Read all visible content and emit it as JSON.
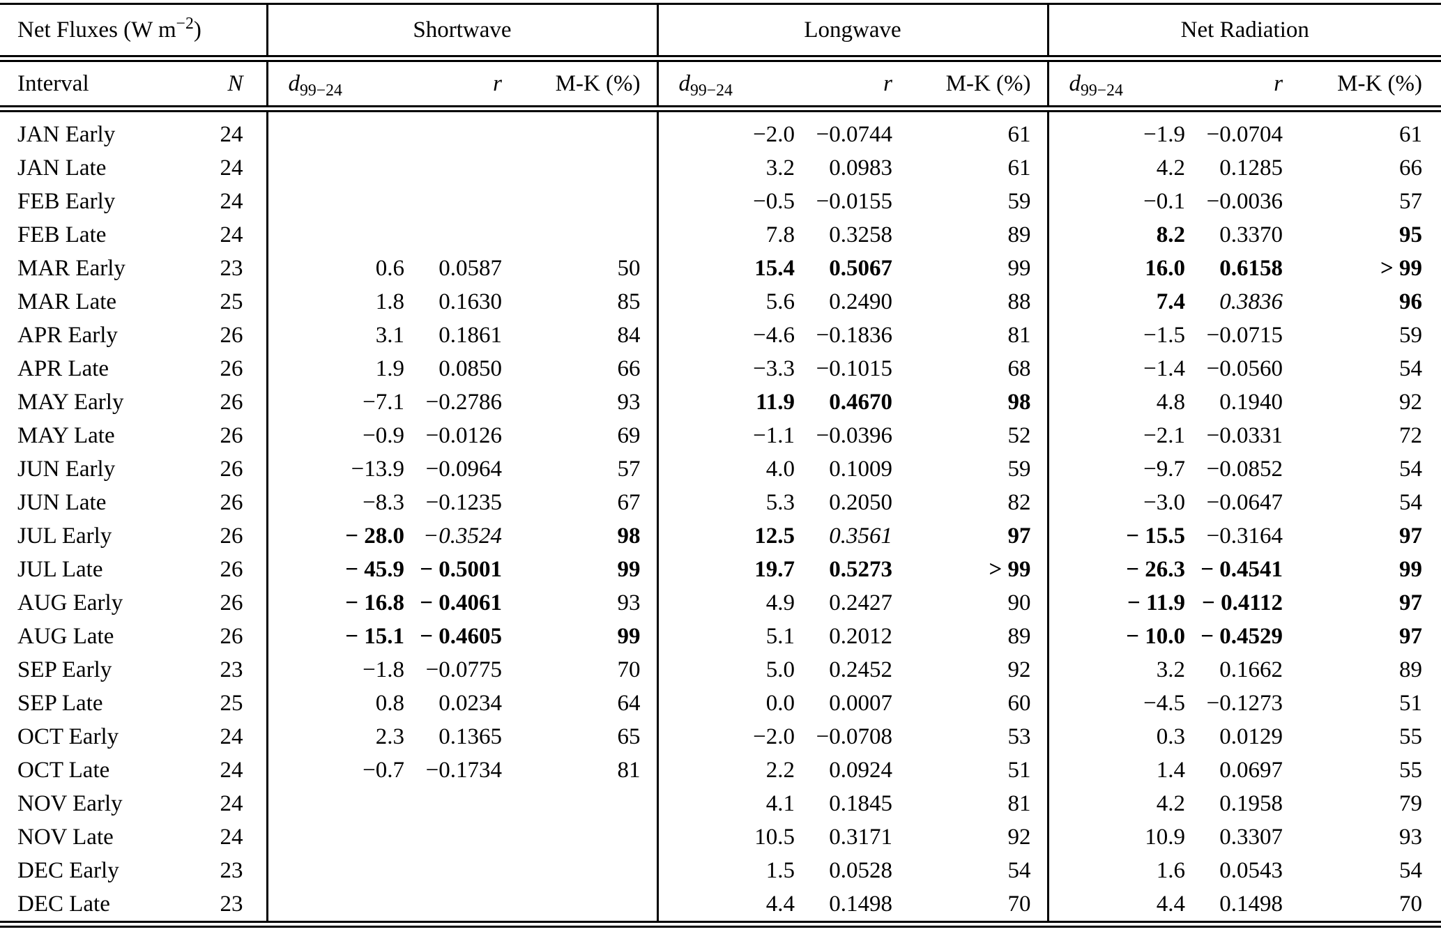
{
  "table": {
    "title_prefix": "Net Fluxes (W m",
    "title_sup": "−2",
    "title_suffix": ")",
    "groups": {
      "shortwave": "Shortwave",
      "longwave": "Longwave",
      "net_radiation": "Net Radiation"
    },
    "columns": {
      "interval": "Interval",
      "n": "N",
      "d_base": "d",
      "d_sub": "99−24",
      "r": "r",
      "mk": "M-K (%)"
    }
  },
  "rows": [
    {
      "interval": "JAN Early",
      "n": "24",
      "sw_d": "",
      "sw_r": "",
      "sw_mk": "",
      "lw_d": "−2.0",
      "lw_r": "−0.0744",
      "lw_mk": "61",
      "nr_d": "−1.9",
      "nr_r": "−0.0704",
      "nr_mk": "61",
      "styles": {}
    },
    {
      "interval": "JAN Late",
      "n": "24",
      "sw_d": "",
      "sw_r": "",
      "sw_mk": "",
      "lw_d": "3.2",
      "lw_r": "0.0983",
      "lw_mk": "61",
      "nr_d": "4.2",
      "nr_r": "0.1285",
      "nr_mk": "66",
      "styles": {}
    },
    {
      "interval": "FEB Early",
      "n": "24",
      "sw_d": "",
      "sw_r": "",
      "sw_mk": "",
      "lw_d": "−0.5",
      "lw_r": "−0.0155",
      "lw_mk": "59",
      "nr_d": "−0.1",
      "nr_r": "−0.0036",
      "nr_mk": "57",
      "styles": {}
    },
    {
      "interval": "FEB Late",
      "n": "24",
      "sw_d": "",
      "sw_r": "",
      "sw_mk": "",
      "lw_d": "7.8",
      "lw_r": "0.3258",
      "lw_mk": "89",
      "nr_d": "8.2",
      "nr_r": "0.3370",
      "nr_mk": "95",
      "styles": {
        "nr_d": "b",
        "nr_mk": "b"
      }
    },
    {
      "interval": "MAR Early",
      "n": "23",
      "sw_d": "0.6",
      "sw_r": "0.0587",
      "sw_mk": "50",
      "lw_d": "15.4",
      "lw_r": "0.5067",
      "lw_mk": "99",
      "nr_d": "16.0",
      "nr_r": "0.6158",
      "nr_mk": "> 99",
      "styles": {
        "lw_d": "b",
        "lw_r": "b",
        "nr_d": "b",
        "nr_r": "b",
        "nr_mk": "b"
      }
    },
    {
      "interval": "MAR Late",
      "n": "25",
      "sw_d": "1.8",
      "sw_r": "0.1630",
      "sw_mk": "85",
      "lw_d": "5.6",
      "lw_r": "0.2490",
      "lw_mk": "88",
      "nr_d": "7.4",
      "nr_r": "0.3836",
      "nr_mk": "96",
      "styles": {
        "nr_d": "b",
        "nr_r": "i",
        "nr_mk": "b"
      }
    },
    {
      "interval": "APR Early",
      "n": "26",
      "sw_d": "3.1",
      "sw_r": "0.1861",
      "sw_mk": "84",
      "lw_d": "−4.6",
      "lw_r": "−0.1836",
      "lw_mk": "81",
      "nr_d": "−1.5",
      "nr_r": "−0.0715",
      "nr_mk": "59",
      "styles": {}
    },
    {
      "interval": "APR Late",
      "n": "26",
      "sw_d": "1.9",
      "sw_r": "0.0850",
      "sw_mk": "66",
      "lw_d": "−3.3",
      "lw_r": "−0.1015",
      "lw_mk": "68",
      "nr_d": "−1.4",
      "nr_r": "−0.0560",
      "nr_mk": "54",
      "styles": {}
    },
    {
      "interval": "MAY Early",
      "n": "26",
      "sw_d": "−7.1",
      "sw_r": "−0.2786",
      "sw_mk": "93",
      "lw_d": "11.9",
      "lw_r": "0.4670",
      "lw_mk": "98",
      "nr_d": "4.8",
      "nr_r": "0.1940",
      "nr_mk": "92",
      "styles": {
        "lw_d": "b",
        "lw_r": "b",
        "lw_mk": "b"
      }
    },
    {
      "interval": "MAY Late",
      "n": "26",
      "sw_d": "−0.9",
      "sw_r": "−0.0126",
      "sw_mk": "69",
      "lw_d": "−1.1",
      "lw_r": "−0.0396",
      "lw_mk": "52",
      "nr_d": "−2.1",
      "nr_r": "−0.0331",
      "nr_mk": "72",
      "styles": {}
    },
    {
      "interval": "JUN Early",
      "n": "26",
      "sw_d": "−13.9",
      "sw_r": "−0.0964",
      "sw_mk": "57",
      "lw_d": "4.0",
      "lw_r": "0.1009",
      "lw_mk": "59",
      "nr_d": "−9.7",
      "nr_r": "−0.0852",
      "nr_mk": "54",
      "styles": {}
    },
    {
      "interval": "JUN Late",
      "n": "26",
      "sw_d": "−8.3",
      "sw_r": "−0.1235",
      "sw_mk": "67",
      "lw_d": "5.3",
      "lw_r": "0.2050",
      "lw_mk": "82",
      "nr_d": "−3.0",
      "nr_r": "−0.0647",
      "nr_mk": "54",
      "styles": {}
    },
    {
      "interval": "JUL Early",
      "n": "26",
      "sw_d": "− 28.0",
      "sw_r": "−0.3524",
      "sw_mk": "98",
      "lw_d": "12.5",
      "lw_r": "0.3561",
      "lw_mk": "97",
      "nr_d": "− 15.5",
      "nr_r": "−0.3164",
      "nr_mk": "97",
      "styles": {
        "sw_d": "b",
        "sw_r": "i",
        "sw_mk": "b",
        "lw_d": "b",
        "lw_r": "i",
        "lw_mk": "b",
        "nr_d": "b",
        "nr_mk": "b"
      }
    },
    {
      "interval": "JUL Late",
      "n": "26",
      "sw_d": "− 45.9",
      "sw_r": "− 0.5001",
      "sw_mk": "99",
      "lw_d": "19.7",
      "lw_r": "0.5273",
      "lw_mk": "> 99",
      "nr_d": "− 26.3",
      "nr_r": "− 0.4541",
      "nr_mk": "99",
      "styles": {
        "sw_d": "b",
        "sw_r": "b",
        "sw_mk": "b",
        "lw_d": "b",
        "lw_r": "b",
        "lw_mk": "b",
        "nr_d": "b",
        "nr_r": "b",
        "nr_mk": "b"
      }
    },
    {
      "interval": "AUG Early",
      "n": "26",
      "sw_d": "− 16.8",
      "sw_r": "− 0.4061",
      "sw_mk": "93",
      "lw_d": "4.9",
      "lw_r": "0.2427",
      "lw_mk": "90",
      "nr_d": "− 11.9",
      "nr_r": "− 0.4112",
      "nr_mk": "97",
      "styles": {
        "sw_d": "b",
        "sw_r": "b",
        "nr_d": "b",
        "nr_r": "b",
        "nr_mk": "b"
      }
    },
    {
      "interval": "AUG Late",
      "n": "26",
      "sw_d": "− 15.1",
      "sw_r": "− 0.4605",
      "sw_mk": "99",
      "lw_d": "5.1",
      "lw_r": "0.2012",
      "lw_mk": "89",
      "nr_d": "− 10.0",
      "nr_r": "− 0.4529",
      "nr_mk": "97",
      "styles": {
        "sw_d": "b",
        "sw_r": "b",
        "sw_mk": "b",
        "nr_d": "b",
        "nr_r": "b",
        "nr_mk": "b"
      }
    },
    {
      "interval": "SEP Early",
      "n": "23",
      "sw_d": "−1.8",
      "sw_r": "−0.0775",
      "sw_mk": "70",
      "lw_d": "5.0",
      "lw_r": "0.2452",
      "lw_mk": "92",
      "nr_d": "3.2",
      "nr_r": "0.1662",
      "nr_mk": "89",
      "styles": {}
    },
    {
      "interval": "SEP Late",
      "n": "25",
      "sw_d": "0.8",
      "sw_r": "0.0234",
      "sw_mk": "64",
      "lw_d": "0.0",
      "lw_r": "0.0007",
      "lw_mk": "60",
      "nr_d": "−4.5",
      "nr_r": "−0.1273",
      "nr_mk": "51",
      "styles": {}
    },
    {
      "interval": "OCT Early",
      "n": "24",
      "sw_d": "2.3",
      "sw_r": "0.1365",
      "sw_mk": "65",
      "lw_d": "−2.0",
      "lw_r": "−0.0708",
      "lw_mk": "53",
      "nr_d": "0.3",
      "nr_r": "0.0129",
      "nr_mk": "55",
      "styles": {}
    },
    {
      "interval": "OCT Late",
      "n": "24",
      "sw_d": "−0.7",
      "sw_r": "−0.1734",
      "sw_mk": "81",
      "lw_d": "2.2",
      "lw_r": "0.0924",
      "lw_mk": "51",
      "nr_d": "1.4",
      "nr_r": "0.0697",
      "nr_mk": "55",
      "styles": {}
    },
    {
      "interval": "NOV Early",
      "n": "24",
      "sw_d": "",
      "sw_r": "",
      "sw_mk": "",
      "lw_d": "4.1",
      "lw_r": "0.1845",
      "lw_mk": "81",
      "nr_d": "4.2",
      "nr_r": "0.1958",
      "nr_mk": "79",
      "styles": {}
    },
    {
      "interval": "NOV Late",
      "n": "24",
      "sw_d": "",
      "sw_r": "",
      "sw_mk": "",
      "lw_d": "10.5",
      "lw_r": "0.3171",
      "lw_mk": "92",
      "nr_d": "10.9",
      "nr_r": "0.3307",
      "nr_mk": "93",
      "styles": {}
    },
    {
      "interval": "DEC Early",
      "n": "23",
      "sw_d": "",
      "sw_r": "",
      "sw_mk": "",
      "lw_d": "1.5",
      "lw_r": "0.0528",
      "lw_mk": "54",
      "nr_d": "1.6",
      "nr_r": "0.0543",
      "nr_mk": "54",
      "styles": {}
    },
    {
      "interval": "DEC Late",
      "n": "23",
      "sw_d": "",
      "sw_r": "",
      "sw_mk": "",
      "lw_d": "4.4",
      "lw_r": "0.1498",
      "lw_mk": "70",
      "nr_d": "4.4",
      "nr_r": "0.1498",
      "nr_mk": "70",
      "styles": {}
    }
  ]
}
